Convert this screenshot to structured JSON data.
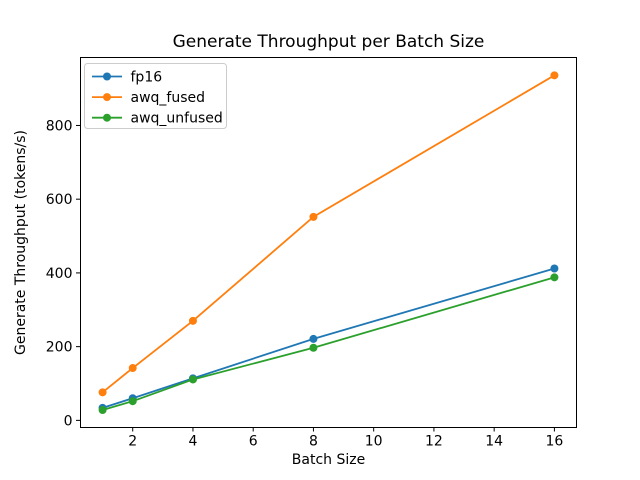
{
  "figure": {
    "background": "#ffffff"
  },
  "chart_data": {
    "type": "line",
    "title": "Generate Throughput per Batch Size",
    "xlabel": "Batch Size",
    "ylabel": "Generate Throughput (tokens/s)",
    "x": [
      1,
      2,
      4,
      8,
      16
    ],
    "series": [
      {
        "name": "fp16",
        "color": "#1f77b4",
        "values": [
          34,
          60,
          114,
          221,
          412
        ]
      },
      {
        "name": "awq_fused",
        "color": "#ff7f0e",
        "values": [
          76,
          142,
          270,
          552,
          936
        ]
      },
      {
        "name": "awq_unfused",
        "color": "#2ca02c",
        "values": [
          28,
          52,
          111,
          197,
          388
        ]
      }
    ],
    "xticks": [
      2,
      4,
      6,
      8,
      10,
      12,
      14,
      16
    ],
    "yticks": [
      0,
      200,
      400,
      600,
      800
    ],
    "xlim": [
      0.25,
      16.75
    ],
    "ylim": [
      -18,
      983
    ],
    "grid": false,
    "legend_position": "upper left",
    "marker": "circle",
    "line_width": 1.8,
    "marker_radius": 4,
    "text_color": "#000000",
    "spine_color": "#000000",
    "legend_border_color": "#cccccc",
    "legend_background": "rgba(255,255,255,0.8)"
  }
}
